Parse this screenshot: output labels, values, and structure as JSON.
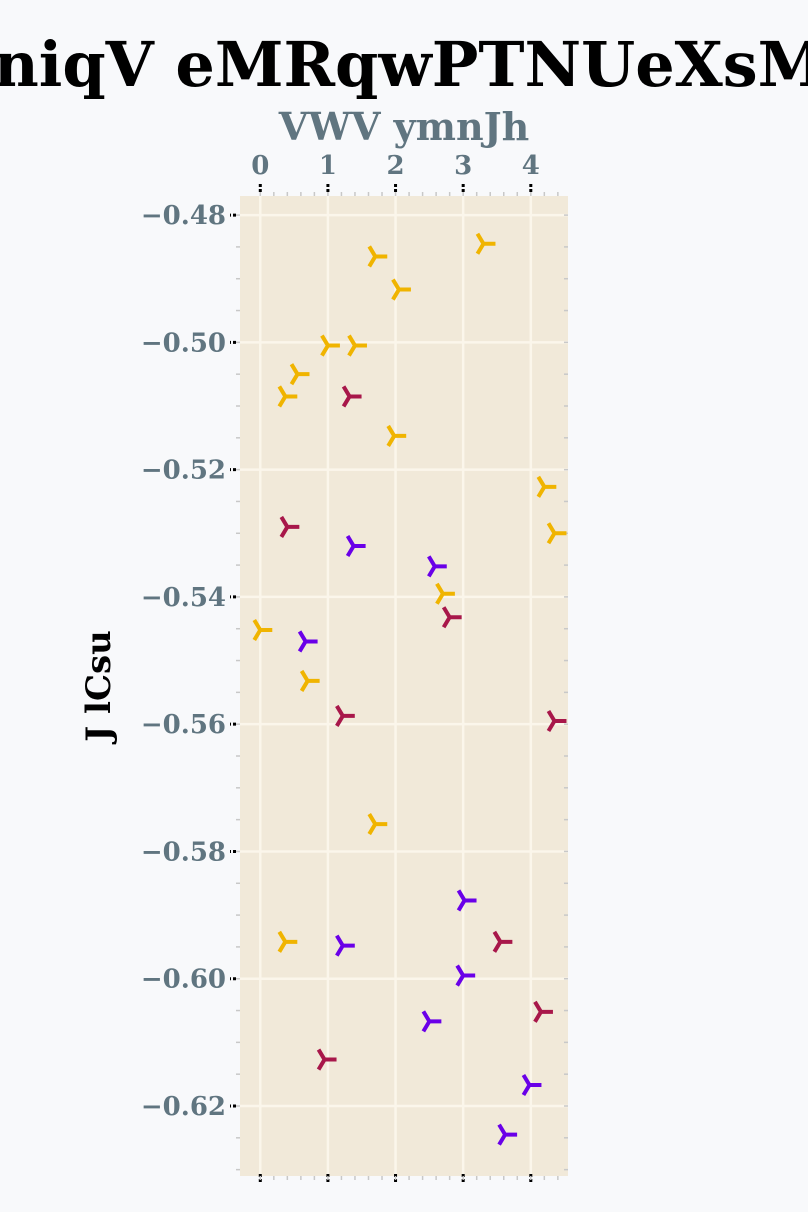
{
  "chart_data": {
    "type": "scatter",
    "title": "niqV eMRqwPTNUeXsM",
    "xlabel": "VWV ymnJh",
    "ylabel": "J lCsu",
    "xlim": [
      -0.3,
      4.55
    ],
    "ylim": [
      -0.631,
      -0.477
    ],
    "xticks": [
      "0",
      "1",
      "2",
      "3",
      "4"
    ],
    "yticks": [
      "−0.48",
      "−0.50",
      "−0.52",
      "−0.54",
      "−0.56",
      "−0.58",
      "−0.60",
      "−0.62"
    ],
    "grid": true,
    "marker": "tri_left",
    "colors": {
      "background": "#f8f9fb",
      "plot_area": "#f1e9d9",
      "grid": "#fbf6eb",
      "tick_label": "#607580"
    },
    "series": [
      {
        "color": "#f0b400",
        "points": [
          {
            "x": 3.3,
            "y": -0.4845
          },
          {
            "x": 1.7,
            "y": -0.4865
          },
          {
            "x": 2.05,
            "y": -0.4917
          },
          {
            "x": 1.0,
            "y": -0.5005
          },
          {
            "x": 1.4,
            "y": -0.5005
          },
          {
            "x": 0.55,
            "y": -0.505
          },
          {
            "x": 0.37,
            "y": -0.5085
          },
          {
            "x": 1.98,
            "y": -0.5147
          },
          {
            "x": 4.2,
            "y": -0.5227
          },
          {
            "x": 4.35,
            "y": -0.53
          },
          {
            "x": 2.7,
            "y": -0.5395
          },
          {
            "x": 0.0,
            "y": -0.5452
          },
          {
            "x": 0.7,
            "y": -0.5532
          },
          {
            "x": 1.7,
            "y": -0.5757
          },
          {
            "x": 0.37,
            "y": -0.5942
          }
        ]
      },
      {
        "color": "#a8174a",
        "points": [
          {
            "x": 1.32,
            "y": -0.5085
          },
          {
            "x": 0.4,
            "y": -0.529
          },
          {
            "x": 2.8,
            "y": -0.5432
          },
          {
            "x": 1.22,
            "y": -0.5587
          },
          {
            "x": 4.35,
            "y": -0.5595
          },
          {
            "x": 3.55,
            "y": -0.5942
          },
          {
            "x": 4.15,
            "y": -0.6052
          },
          {
            "x": 0.95,
            "y": -0.6127
          }
        ]
      },
      {
        "color": "#6a00e8",
        "points": [
          {
            "x": 1.38,
            "y": -0.532
          },
          {
            "x": 2.58,
            "y": -0.5352
          },
          {
            "x": 0.67,
            "y": -0.547
          },
          {
            "x": 3.02,
            "y": -0.5877
          },
          {
            "x": 1.22,
            "y": -0.5948
          },
          {
            "x": 3.0,
            "y": -0.5995
          },
          {
            "x": 2.5,
            "y": -0.6067
          },
          {
            "x": 3.98,
            "y": -0.6167
          },
          {
            "x": 3.62,
            "y": -0.6245
          }
        ]
      }
    ]
  }
}
